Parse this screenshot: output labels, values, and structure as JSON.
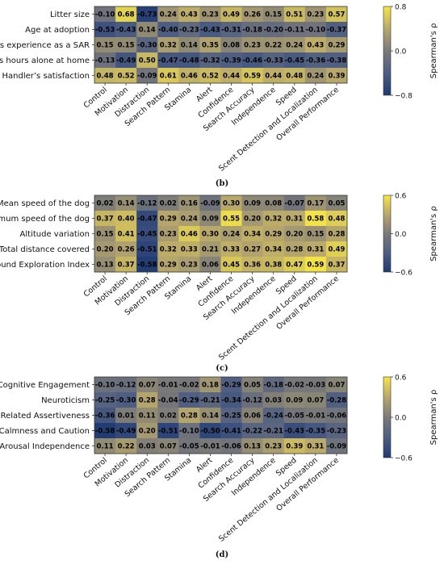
{
  "chart_data": [
    {
      "type": "heatmap",
      "panel_label": "(b)",
      "colorbar_label": "Spearman's ρ",
      "vmin": -0.8,
      "vmax": 0.8,
      "colorbar_ticks": [
        "0.8",
        "0.0",
        "−0.8"
      ],
      "columns": [
        "Control",
        "Motivation",
        "Distraction",
        "Search Pattern",
        "Stamina",
        "Alert",
        "Confidence",
        "Search Accuracy",
        "Independence",
        "Speed",
        "Scent Detection and Localization",
        "Overall Performance"
      ],
      "rows": [
        "Litter size",
        "Age at adoption",
        "Dog’s experience as a SAR",
        "Dog’s hours alone at home",
        "Handler’s satisfaction"
      ],
      "values": [
        [
          -0.1,
          0.68,
          -0.73,
          0.24,
          0.43,
          0.23,
          0.49,
          0.26,
          0.15,
          0.51,
          0.23,
          0.57
        ],
        [
          -0.53,
          -0.43,
          0.14,
          -0.4,
          -0.23,
          -0.43,
          -0.31,
          -0.18,
          -0.2,
          -0.11,
          -0.1,
          -0.37
        ],
        [
          0.15,
          0.15,
          -0.3,
          0.32,
          0.14,
          0.35,
          0.08,
          0.23,
          0.22,
          0.24,
          0.43,
          0.29
        ],
        [
          -0.13,
          -0.49,
          0.5,
          -0.47,
          -0.48,
          -0.32,
          -0.39,
          -0.46,
          -0.33,
          -0.45,
          -0.36,
          -0.38
        ],
        [
          0.48,
          0.52,
          -0.09,
          0.61,
          0.46,
          0.52,
          0.44,
          0.59,
          0.44,
          0.48,
          0.24,
          0.39
        ]
      ]
    },
    {
      "type": "heatmap",
      "panel_label": "(c)",
      "colorbar_label": "Spearman's ρ",
      "vmin": -0.6,
      "vmax": 0.6,
      "colorbar_ticks": [
        "0.6",
        "0.0",
        "−0.6"
      ],
      "columns": [
        "Control",
        "Motivation",
        "Distraction",
        "Search Pattern",
        "Stamina",
        "Alert",
        "Confidence",
        "Search Accuracy",
        "Independence",
        "Speed",
        "Scent Detection and Localization",
        "Overall Performance"
      ],
      "rows": [
        "Mean speed of the dog",
        "Maximum speed of the dog",
        "Altitude variation",
        "Total distance covered",
        "Ground Exploration Index"
      ],
      "values": [
        [
          0.02,
          0.14,
          -0.12,
          0.02,
          0.16,
          -0.09,
          0.3,
          0.09,
          0.08,
          -0.07,
          0.17,
          0.05
        ],
        [
          0.37,
          0.4,
          -0.47,
          0.29,
          0.24,
          0.09,
          0.55,
          0.2,
          0.32,
          0.31,
          0.58,
          0.48
        ],
        [
          0.15,
          0.41,
          -0.45,
          0.23,
          0.46,
          0.3,
          0.24,
          0.34,
          0.29,
          0.2,
          0.15,
          0.28
        ],
        [
          0.2,
          0.26,
          -0.51,
          0.32,
          0.33,
          0.21,
          0.33,
          0.27,
          0.34,
          0.28,
          0.31,
          0.49
        ],
        [
          0.13,
          0.37,
          -0.58,
          0.29,
          0.23,
          0.06,
          0.45,
          0.36,
          0.38,
          0.47,
          0.59,
          0.37
        ]
      ]
    },
    {
      "type": "heatmap",
      "panel_label": "(d)",
      "colorbar_label": "Spearman's ρ",
      "vmin": -0.6,
      "vmax": 0.6,
      "colorbar_ticks": [
        "0.6",
        "0.0",
        "−0.6"
      ],
      "columns": [
        "Control",
        "Motivation",
        "Distraction",
        "Search Pattern",
        "Stamina",
        "Alert",
        "Confidence",
        "Search Accuracy",
        "Independence",
        "Speed",
        "Scent Detection and Localization",
        "Overall Performance"
      ],
      "rows": [
        "Socio-Cognitive Engagement",
        "Neuroticism",
        "Status-Related Assertiveness",
        "Calmness and Caution",
        "High-Arousal Independence"
      ],
      "values": [
        [
          -0.1,
          -0.12,
          0.07,
          -0.01,
          -0.02,
          0.18,
          -0.29,
          0.05,
          -0.18,
          -0.02,
          -0.03,
          0.07
        ],
        [
          -0.25,
          -0.3,
          0.28,
          -0.04,
          -0.29,
          -0.21,
          -0.34,
          -0.12,
          0.03,
          0.09,
          0.07,
          -0.28
        ],
        [
          -0.36,
          0.01,
          0.11,
          0.02,
          0.28,
          0.14,
          -0.25,
          0.06,
          -0.24,
          -0.05,
          -0.01,
          -0.06
        ],
        [
          -0.58,
          -0.49,
          0.2,
          -0.51,
          -0.1,
          -0.5,
          -0.41,
          -0.22,
          -0.21,
          -0.43,
          -0.35,
          -0.23
        ],
        [
          0.11,
          0.22,
          0.03,
          0.07,
          -0.05,
          -0.01,
          -0.06,
          0.13,
          0.23,
          0.39,
          0.31,
          -0.09
        ]
      ]
    }
  ]
}
